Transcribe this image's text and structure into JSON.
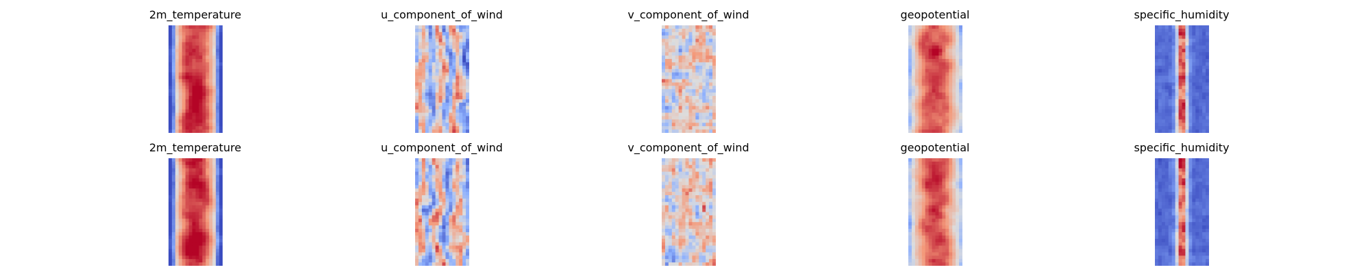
{
  "chart_data": [
    {
      "type": "heatmap",
      "rows": [
        {
          "panels": [
            {
              "title": "2m_temperature",
              "field": "temperature"
            },
            {
              "title": "u_component_of_wind",
              "field": "wind_u"
            },
            {
              "title": "v_component_of_wind",
              "field": "wind_v"
            },
            {
              "title": "geopotential",
              "field": "geopotential"
            },
            {
              "title": "specific_humidity",
              "field": "humidity"
            }
          ]
        },
        {
          "panels": [
            {
              "title": "2m_temperature",
              "field": "temperature"
            },
            {
              "title": "u_component_of_wind",
              "field": "wind_u"
            },
            {
              "title": "v_component_of_wind",
              "field": "wind_v"
            },
            {
              "title": "geopotential",
              "field": "geopotential"
            },
            {
              "title": "specific_humidity",
              "field": "humidity"
            }
          ]
        }
      ],
      "colormap": "coolwarm",
      "colormap_stops": [
        "#3b4cc0",
        "#8db0fe",
        "#dddddd",
        "#f49a7b",
        "#b40426"
      ],
      "axes_visible": false,
      "grid": false
    }
  ]
}
